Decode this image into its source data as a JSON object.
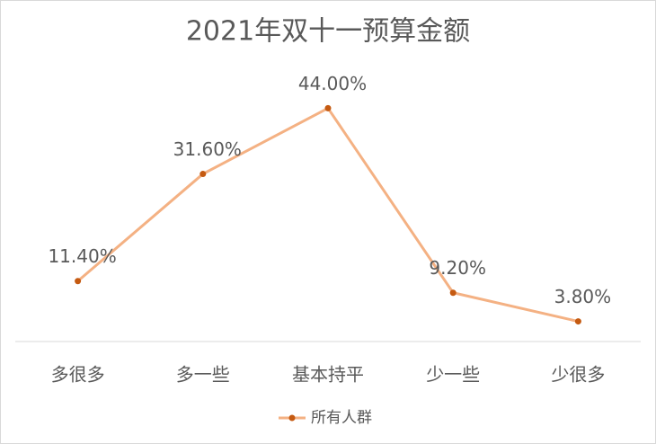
{
  "chart_data": {
    "type": "line",
    "title": "2021年双十一预算金额",
    "categories": [
      "多很多",
      "多一些",
      "基本持平",
      "少一些",
      "少很多"
    ],
    "series": [
      {
        "name": "所有人群",
        "color": "#f4b183",
        "marker_color": "#c55a11",
        "values": [
          11.4,
          31.6,
          44.0,
          9.2,
          3.8
        ],
        "value_labels": [
          "11.40%",
          "31.60%",
          "44.00%",
          "9.20%",
          "3.80%"
        ]
      }
    ],
    "ylim": [
      0,
      50
    ],
    "legend": "bottom"
  }
}
